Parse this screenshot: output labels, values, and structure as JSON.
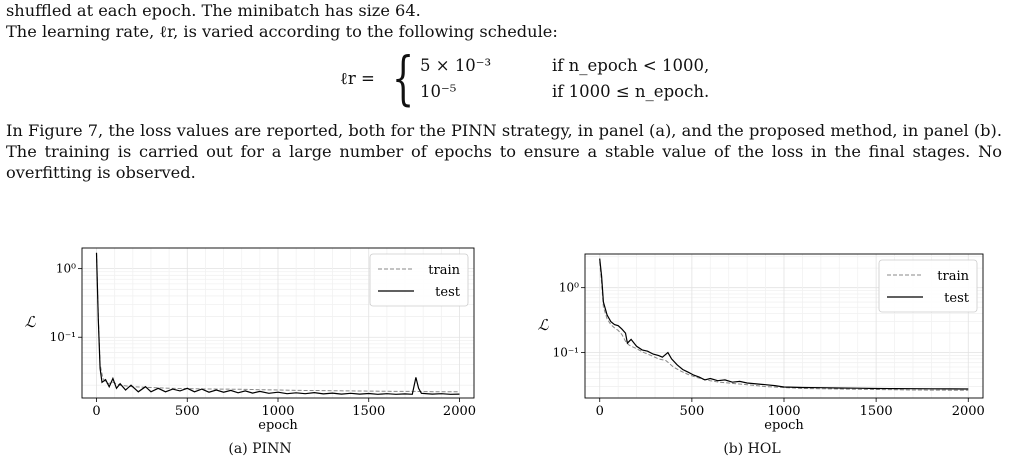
{
  "text": {
    "p1": "shuffled at each epoch. The minibatch has size 64.",
    "p2": "The learning rate, ℓr, is varied according to the following schedule:",
    "p3": "In Figure 7, the loss values are reported, both for the PINN strategy, in panel (a), and the proposed method, in panel (b). The training is carried out for a large number of epochs to ensure a stable value of the loss in the final stages. No overfitting is observed."
  },
  "equation": {
    "lhs": "ℓr =",
    "row1_value": "5 × 10⁻³",
    "row1_cond": "if  n_epoch < 1000,",
    "row2_value": "10⁻⁵",
    "row2_cond": "if  1000 ≤ n_epoch."
  },
  "captions": {
    "a": "(a) PINN",
    "b": "(b) HOL"
  },
  "chart_data": [
    {
      "type": "line",
      "xlabel": "epoch",
      "ylabel": "ℒ",
      "yscale": "log",
      "xlim": [
        -80,
        2080
      ],
      "ylim": [
        0.013,
        2.0
      ],
      "xticks": [
        0,
        500,
        1000,
        1500,
        2000
      ],
      "yticks": [
        {
          "value": 1,
          "label": "10⁰"
        },
        {
          "value": 0.1,
          "label": "10⁻¹"
        }
      ],
      "grid": true,
      "legend": "top-right",
      "series": [
        {
          "name": "train",
          "style": "dashed",
          "color": "#888888",
          "points": [
            [
              0,
              1.7
            ],
            [
              10,
              0.2
            ],
            [
              20,
              0.04
            ],
            [
              35,
              0.025
            ],
            [
              60,
              0.021
            ],
            [
              90,
              0.022
            ],
            [
              130,
              0.02
            ],
            [
              200,
              0.019
            ],
            [
              300,
              0.0185
            ],
            [
              400,
              0.018
            ],
            [
              500,
              0.0178
            ],
            [
              600,
              0.0176
            ],
            [
              700,
              0.0175
            ],
            [
              800,
              0.0174
            ],
            [
              900,
              0.0172
            ],
            [
              1000,
              0.017
            ],
            [
              1100,
              0.0168
            ],
            [
              1200,
              0.0167
            ],
            [
              1300,
              0.0166
            ],
            [
              1400,
              0.0165
            ],
            [
              1500,
              0.0164
            ],
            [
              1600,
              0.0163
            ],
            [
              1700,
              0.0162
            ],
            [
              1760,
              0.0162
            ],
            [
              1800,
              0.0161
            ],
            [
              1900,
              0.016
            ],
            [
              2000,
              0.016
            ]
          ]
        },
        {
          "name": "test",
          "style": "solid",
          "color": "#000000",
          "points": [
            [
              0,
              1.7
            ],
            [
              10,
              0.18
            ],
            [
              20,
              0.035
            ],
            [
              30,
              0.022
            ],
            [
              50,
              0.024
            ],
            [
              70,
              0.019
            ],
            [
              90,
              0.025
            ],
            [
              110,
              0.018
            ],
            [
              130,
              0.021
            ],
            [
              160,
              0.017
            ],
            [
              190,
              0.02
            ],
            [
              230,
              0.016
            ],
            [
              270,
              0.019
            ],
            [
              300,
              0.016
            ],
            [
              340,
              0.018
            ],
            [
              380,
              0.016
            ],
            [
              420,
              0.0175
            ],
            [
              460,
              0.0165
            ],
            [
              500,
              0.018
            ],
            [
              540,
              0.016
            ],
            [
              580,
              0.0175
            ],
            [
              620,
              0.0158
            ],
            [
              660,
              0.017
            ],
            [
              700,
              0.0158
            ],
            [
              740,
              0.0168
            ],
            [
              780,
              0.0155
            ],
            [
              820,
              0.0165
            ],
            [
              860,
              0.0153
            ],
            [
              900,
              0.0162
            ],
            [
              950,
              0.0152
            ],
            [
              1000,
              0.0158
            ],
            [
              1050,
              0.015
            ],
            [
              1100,
              0.0155
            ],
            [
              1150,
              0.015
            ],
            [
              1200,
              0.0156
            ],
            [
              1250,
              0.0149
            ],
            [
              1300,
              0.0153
            ],
            [
              1350,
              0.0148
            ],
            [
              1400,
              0.0152
            ],
            [
              1450,
              0.0148
            ],
            [
              1500,
              0.0151
            ],
            [
              1550,
              0.0147
            ],
            [
              1600,
              0.015
            ],
            [
              1650,
              0.0147
            ],
            [
              1700,
              0.0149
            ],
            [
              1740,
              0.0147
            ],
            [
              1760,
              0.026
            ],
            [
              1775,
              0.018
            ],
            [
              1790,
              0.0152
            ],
            [
              1850,
              0.0148
            ],
            [
              1900,
              0.015
            ],
            [
              1950,
              0.0147
            ],
            [
              2000,
              0.0148
            ]
          ]
        }
      ]
    },
    {
      "type": "line",
      "xlabel": "epoch",
      "ylabel": "ℒ",
      "yscale": "log",
      "xlim": [
        -80,
        2080
      ],
      "ylim": [
        0.02,
        3.3
      ],
      "xticks": [
        0,
        500,
        1000,
        1500,
        2000
      ],
      "yticks": [
        {
          "value": 1,
          "label": "10⁰"
        },
        {
          "value": 0.1,
          "label": "10⁻¹"
        }
      ],
      "grid": true,
      "legend": "top-right",
      "series": [
        {
          "name": "train",
          "style": "dashed",
          "color": "#888888",
          "points": [
            [
              0,
              2.5
            ],
            [
              10,
              1.2
            ],
            [
              20,
              0.5
            ],
            [
              40,
              0.33
            ],
            [
              60,
              0.27
            ],
            [
              80,
              0.24
            ],
            [
              100,
              0.22
            ],
            [
              120,
              0.19
            ],
            [
              140,
              0.15
            ],
            [
              160,
              0.13
            ],
            [
              200,
              0.115
            ],
            [
              240,
              0.1
            ],
            [
              280,
              0.09
            ],
            [
              320,
              0.08
            ],
            [
              360,
              0.075
            ],
            [
              400,
              0.06
            ],
            [
              440,
              0.052
            ],
            [
              480,
              0.046
            ],
            [
              520,
              0.042
            ],
            [
              560,
              0.039
            ],
            [
              600,
              0.037
            ],
            [
              650,
              0.035
            ],
            [
              700,
              0.034
            ],
            [
              750,
              0.033
            ],
            [
              800,
              0.032
            ],
            [
              850,
              0.031
            ],
            [
              900,
              0.03
            ],
            [
              1000,
              0.029
            ],
            [
              1100,
              0.028
            ],
            [
              1200,
              0.0278
            ],
            [
              1300,
              0.0275
            ],
            [
              1400,
              0.0272
            ],
            [
              1500,
              0.027
            ],
            [
              1600,
              0.0268
            ],
            [
              1700,
              0.0266
            ],
            [
              1800,
              0.0265
            ],
            [
              1900,
              0.0264
            ],
            [
              2000,
              0.0263
            ]
          ]
        },
        {
          "name": "test",
          "style": "solid",
          "color": "#000000",
          "points": [
            [
              0,
              2.8
            ],
            [
              10,
              1.5
            ],
            [
              20,
              0.6
            ],
            [
              40,
              0.38
            ],
            [
              60,
              0.3
            ],
            [
              80,
              0.27
            ],
            [
              100,
              0.26
            ],
            [
              120,
              0.23
            ],
            [
              140,
              0.2
            ],
            [
              150,
              0.14
            ],
            [
              170,
              0.16
            ],
            [
              200,
              0.125
            ],
            [
              230,
              0.11
            ],
            [
              260,
              0.105
            ],
            [
              290,
              0.095
            ],
            [
              320,
              0.09
            ],
            [
              340,
              0.085
            ],
            [
              360,
              0.095
            ],
            [
              370,
              0.1
            ],
            [
              390,
              0.08
            ],
            [
              420,
              0.065
            ],
            [
              450,
              0.055
            ],
            [
              480,
              0.05
            ],
            [
              510,
              0.045
            ],
            [
              540,
              0.042
            ],
            [
              570,
              0.038
            ],
            [
              600,
              0.04
            ],
            [
              640,
              0.037
            ],
            [
              680,
              0.038
            ],
            [
              720,
              0.035
            ],
            [
              760,
              0.036
            ],
            [
              800,
              0.034
            ],
            [
              850,
              0.033
            ],
            [
              900,
              0.032
            ],
            [
              950,
              0.031
            ],
            [
              1000,
              0.0295
            ],
            [
              1100,
              0.029
            ],
            [
              1200,
              0.0288
            ],
            [
              1300,
              0.0285
            ],
            [
              1400,
              0.0283
            ],
            [
              1500,
              0.028
            ],
            [
              1600,
              0.0279
            ],
            [
              1700,
              0.0278
            ],
            [
              1800,
              0.0277
            ],
            [
              1900,
              0.0276
            ],
            [
              2000,
              0.0275
            ]
          ]
        }
      ]
    }
  ]
}
